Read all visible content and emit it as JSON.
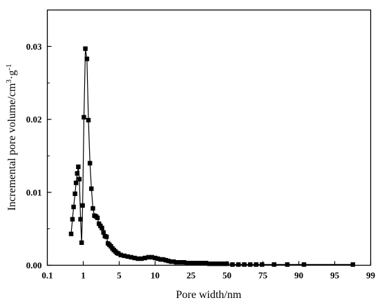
{
  "chart_data": {
    "type": "line",
    "markers": "filled-square",
    "x_scale": "log",
    "xlabel": "Pore width/nm",
    "ylabel": {
      "prefix": "Incremental pore volume/cm",
      "sup1": "3",
      "middle": "·g",
      "sup2": "-1"
    },
    "xlim": [
      0.1,
      99
    ],
    "ylim": [
      0,
      0.035
    ],
    "x_ticks": [
      0.1,
      1,
      5,
      10,
      25,
      50,
      75,
      90,
      95,
      99
    ],
    "x_tick_labels": [
      "0.1",
      "1",
      "5",
      "10",
      "25",
      "50",
      "75",
      "90",
      "95",
      "99"
    ],
    "y_ticks": [
      0,
      0.01,
      0.02,
      0.03
    ],
    "y_tick_labels": [
      "0.00",
      "0.01",
      "0.02",
      "0.03"
    ],
    "grid": false,
    "legend": "none",
    "series_color": "#000000",
    "series": [
      {
        "x": [
          0.46,
          0.5,
          0.54,
          0.59,
          0.63,
          0.68,
          0.73,
          0.78,
          0.84,
          0.9,
          0.96,
          1.03,
          1.1,
          1.18,
          1.26,
          1.35,
          1.44,
          1.54,
          1.65,
          1.77,
          1.89,
          2.02,
          2.16,
          2.31,
          2.47,
          2.64,
          2.83,
          3.02,
          3.23,
          3.45,
          3.69,
          3.95,
          4.22,
          4.51,
          4.82,
          5.15,
          5.51,
          5.89,
          6.3,
          6.73,
          7.19,
          7.69,
          8.22,
          8.79,
          9.39,
          10.0,
          10.7,
          11.5,
          12.3,
          13.1,
          14.0,
          15.0,
          16.0,
          17.1,
          18.3,
          19.6,
          20.9,
          22.4,
          23.9,
          25.5,
          27.3,
          29.2,
          31.2,
          33.4,
          35.7,
          38.1,
          40.8,
          43.6,
          46.6,
          49.8,
          53.2,
          56.9,
          60.8,
          65.0,
          69.5,
          74.3,
          79.4,
          84.9,
          90.7,
          97.0
        ],
        "values": [
          0.0043,
          0.0063,
          0.008,
          0.0098,
          0.0113,
          0.0126,
          0.0135,
          0.0118,
          0.0063,
          0.0031,
          0.0082,
          0.0203,
          0.0297,
          0.0283,
          0.0199,
          0.014,
          0.0105,
          0.0078,
          0.0068,
          0.0067,
          0.0065,
          0.0057,
          0.0054,
          0.0051,
          0.0045,
          0.004,
          0.0039,
          0.003,
          0.0028,
          0.0026,
          0.0023,
          0.0021,
          0.0019,
          0.0017,
          0.0016,
          0.0014,
          0.0013,
          0.0012,
          0.0011,
          0.001,
          0.0009,
          0.0009,
          0.001,
          0.0011,
          0.0011,
          0.001,
          0.0009,
          0.0008,
          0.0008,
          0.0007,
          0.0006,
          0.0005,
          0.0005,
          0.0004,
          0.0004,
          0.0004,
          0.0004,
          0.0003,
          0.0003,
          0.0003,
          0.0003,
          0.0003,
          0.0003,
          0.0003,
          0.0002,
          0.0002,
          0.0002,
          0.0002,
          0.0002,
          0.0002,
          0.0001,
          0.0001,
          0.0001,
          0.0001,
          0.0001,
          0.0001,
          0.0001,
          0.0001,
          0.0001,
          0.0001
        ]
      }
    ]
  }
}
